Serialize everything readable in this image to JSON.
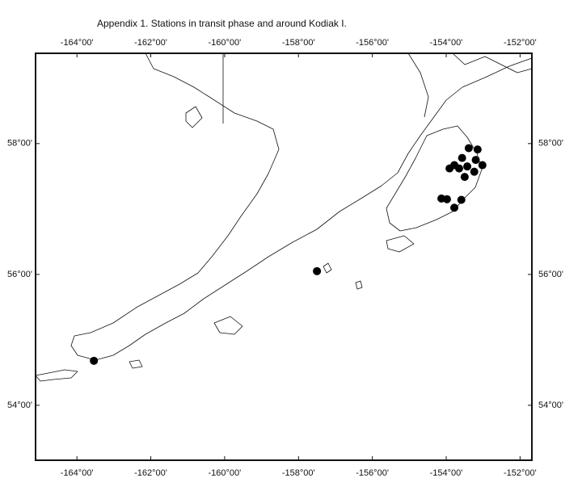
{
  "title": "Appendix 1.   Stations in transit phase and around Kodiak I.",
  "map": {
    "xlim": [
      -165.12,
      -151.68
    ],
    "ylim": [
      53.16,
      59.38
    ],
    "xticks": [
      {
        "value": -164,
        "label": "-164°00'"
      },
      {
        "value": -162,
        "label": "-162°00'"
      },
      {
        "value": -160,
        "label": "-160°00'"
      },
      {
        "value": -158,
        "label": "-158°00'"
      },
      {
        "value": -156,
        "label": "-156°00'"
      },
      {
        "value": -154,
        "label": "-154°00'"
      },
      {
        "value": -152,
        "label": "-152°00'"
      }
    ],
    "yticks": [
      {
        "value": 54,
        "label": "54°00'"
      },
      {
        "value": 56,
        "label": "56°00'"
      },
      {
        "value": 58,
        "label": "58°00'"
      }
    ],
    "stations": {
      "lon": [
        -163.54,
        -157.5,
        -153.39,
        -153.15,
        -153.57,
        -153.2,
        -153.78,
        -153.91,
        -153.43,
        -153.02,
        -153.65,
        -153.24,
        -153.5,
        -154.13,
        -153.98,
        -153.59,
        -153.78
      ],
      "lat": [
        54.68,
        56.05,
        57.93,
        57.91,
        57.78,
        57.75,
        57.67,
        57.62,
        57.65,
        57.67,
        57.62,
        57.57,
        57.49,
        57.16,
        57.15,
        57.14,
        57.02
      ]
    }
  }
}
